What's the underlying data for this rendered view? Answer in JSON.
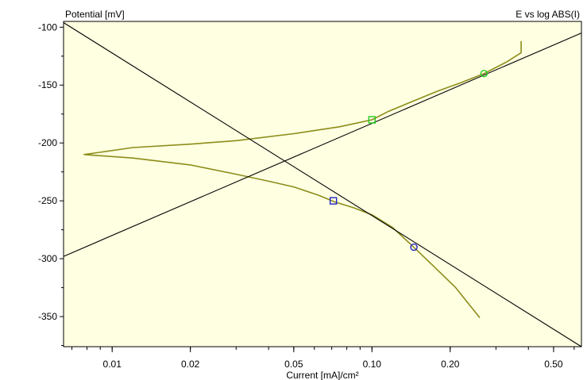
{
  "chart_data": {
    "type": "line",
    "title": "E vs log ABS(I)",
    "ylabel": "Potential [mV]",
    "xlabel": "Current [mA]/cm²",
    "x_scale": "log",
    "xlim": [
      0.0065,
      0.64
    ],
    "ylim": [
      -376,
      -95
    ],
    "x_ticks": [
      0.01,
      0.02,
      0.05,
      0.1,
      0.2,
      0.5
    ],
    "x_tick_labels": [
      "0.01",
      "0.02",
      "0.05",
      "0.10",
      "0.20",
      "0.50"
    ],
    "y_ticks": [
      -100,
      -150,
      -200,
      -250,
      -300,
      -350
    ],
    "y_tick_labels": [
      "-100",
      "-150",
      "-200",
      "-250",
      "-300",
      "-350"
    ],
    "grid": false,
    "colors": {
      "plot_background": "#ffffe1",
      "curve": "#8c8c1a",
      "tafel_lines": "#000000",
      "anodic_markers": "#22cc22",
      "cathodic_markers": "#2222cc"
    },
    "series": [
      {
        "kind": "curve",
        "points": [
          [
            0.375,
            -112
          ],
          [
            0.375,
            -122
          ],
          [
            0.33,
            -130
          ],
          [
            0.27,
            -140
          ],
          [
            0.22,
            -148
          ],
          [
            0.18,
            -155
          ],
          [
            0.14,
            -165
          ],
          [
            0.115,
            -173
          ],
          [
            0.1,
            -180
          ],
          [
            0.075,
            -186
          ],
          [
            0.05,
            -192
          ],
          [
            0.03,
            -198
          ],
          [
            0.02,
            -201
          ],
          [
            0.012,
            -204
          ],
          [
            0.0078,
            -210
          ],
          [
            0.012,
            -213
          ],
          [
            0.02,
            -219
          ],
          [
            0.03,
            -227
          ],
          [
            0.04,
            -233
          ],
          [
            0.05,
            -238
          ],
          [
            0.062,
            -245
          ],
          [
            0.072,
            -251
          ],
          [
            0.085,
            -256
          ],
          [
            0.1,
            -262
          ],
          [
            0.12,
            -273
          ],
          [
            0.14,
            -287
          ],
          [
            0.17,
            -305
          ],
          [
            0.21,
            -325
          ],
          [
            0.26,
            -351
          ]
        ]
      },
      {
        "kind": "line",
        "points": [
          [
            0.0065,
            -298
          ],
          [
            0.64,
            -105
          ]
        ]
      },
      {
        "kind": "line",
        "points": [
          [
            0.0065,
            -96
          ],
          [
            0.64,
            -376
          ]
        ]
      }
    ],
    "markers": [
      {
        "shape": "square",
        "color": "anodic",
        "x": 0.1,
        "y": -180
      },
      {
        "shape": "circle",
        "color": "anodic",
        "x": 0.27,
        "y": -140
      },
      {
        "shape": "square",
        "color": "cathodic",
        "x": 0.071,
        "y": -250
      },
      {
        "shape": "circle",
        "color": "cathodic",
        "x": 0.145,
        "y": -290
      }
    ]
  }
}
